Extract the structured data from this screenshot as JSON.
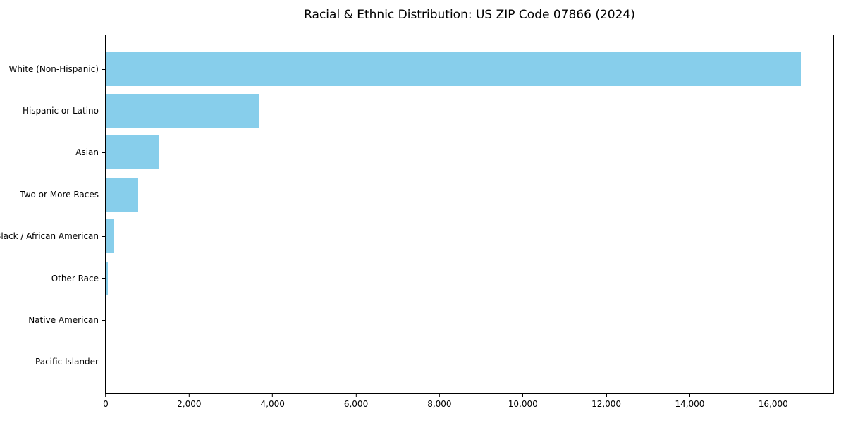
{
  "title": "Racial & Ethnic Distribution: US ZIP Code 07866 (2024)",
  "chart_data": {
    "type": "bar",
    "orientation": "horizontal",
    "title": "Racial & Ethnic Distribution: US ZIP Code 07866 (2024)",
    "categories": [
      "White (Non-Hispanic)",
      "Hispanic or Latino",
      "Asian",
      "Two or More Races",
      "Black / African American",
      "Other Race",
      "Native American",
      "Pacific Islander"
    ],
    "values": [
      16660,
      3690,
      1280,
      780,
      200,
      50,
      0,
      0
    ],
    "bar_color": "#87CEEB",
    "xlabel": "",
    "ylabel": "",
    "xlim": [
      0,
      17440
    ],
    "x_ticks": [
      {
        "value": 0,
        "label": "0"
      },
      {
        "value": 2000,
        "label": "2,000"
      },
      {
        "value": 4000,
        "label": "4,000"
      },
      {
        "value": 6000,
        "label": "6,000"
      },
      {
        "value": 8000,
        "label": "8,000"
      },
      {
        "value": 10000,
        "label": "10,000"
      },
      {
        "value": 12000,
        "label": "12,000"
      },
      {
        "value": 14000,
        "label": "14,000"
      },
      {
        "value": 16000,
        "label": "16,000"
      }
    ],
    "grid": false,
    "legend_position": "none"
  }
}
